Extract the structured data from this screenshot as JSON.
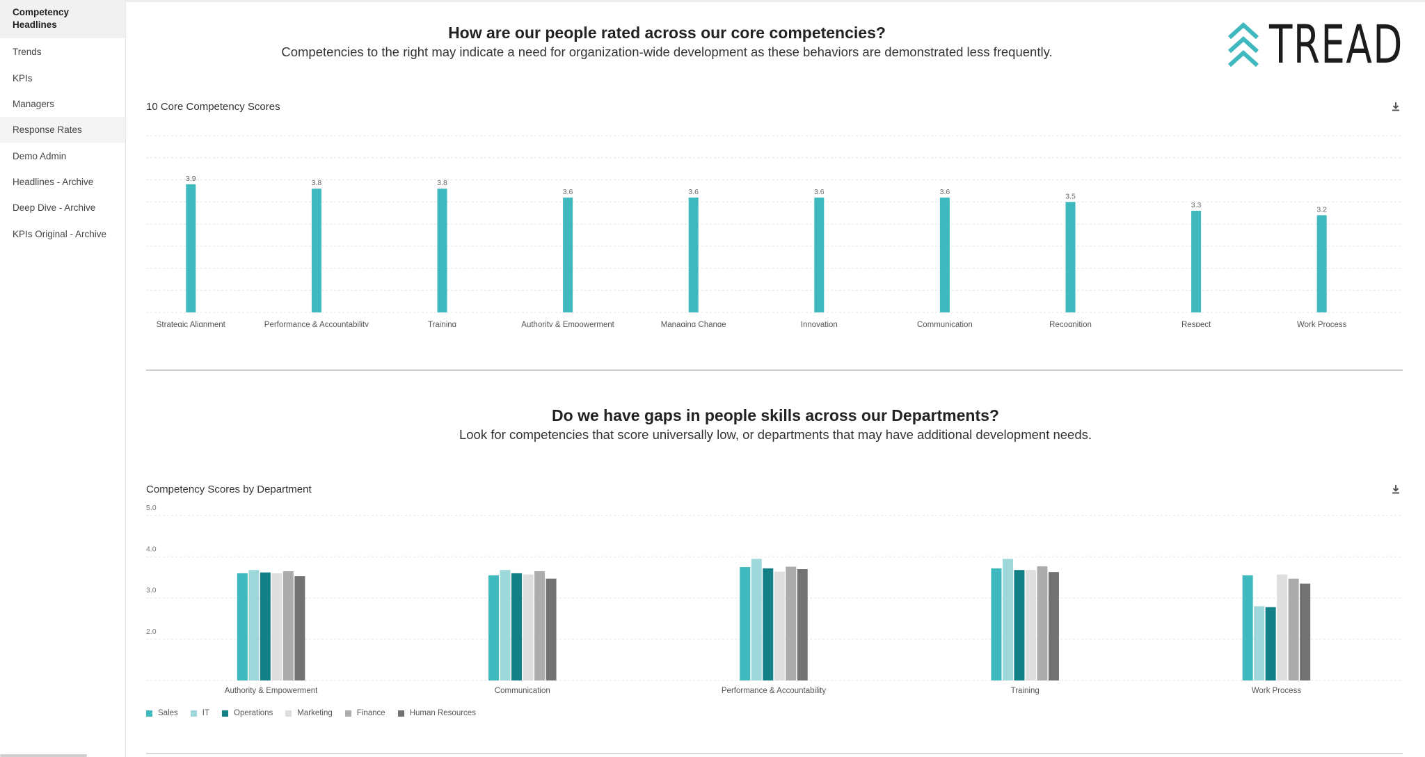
{
  "sidebar": {
    "items": [
      {
        "label": "Competency Headlines",
        "active": true
      },
      {
        "label": "Trends"
      },
      {
        "label": "KPIs"
      },
      {
        "label": "Managers"
      },
      {
        "label": "Response Rates"
      },
      {
        "label": "Demo Admin"
      },
      {
        "label": "Headlines - Archive"
      },
      {
        "label": "Deep Dive - Archive"
      },
      {
        "label": "KPIs Original - Archive"
      }
    ]
  },
  "logo": {
    "text": "TREAD",
    "accent": "#3fb8be"
  },
  "section1": {
    "heading": "How are our people rated across our core competencies?",
    "subheading": "Competencies to the right may indicate a need for organization-wide development as these behaviors are demonstrated less frequently."
  },
  "section2": {
    "heading": "Do we have gaps in people skills across our Departments?",
    "subheading": "Look for competencies that score universally low, or departments that may have additional development needs."
  },
  "icons": {
    "download": "download-icon"
  },
  "chart_data": [
    {
      "type": "bar",
      "title": "10 Core Competency Scores",
      "categories": [
        "Strategic Alignment",
        "Performance & Accountability",
        "Training",
        "Authority & Empowerment",
        "Managing Change",
        "Innovation",
        "Communication",
        "Recognition",
        "Respect",
        "Work Process"
      ],
      "values": [
        3.9,
        3.8,
        3.8,
        3.6,
        3.6,
        3.6,
        3.6,
        3.5,
        3.3,
        3.2
      ],
      "labels": [
        "3.9",
        "3.8",
        "3.8",
        "3.6",
        "3.6",
        "3.6",
        "3.6",
        "3.5",
        "3.3",
        "3.2"
      ],
      "ylim": [
        1.0,
        5.0
      ],
      "grid": true,
      "color": "#3fb8be"
    },
    {
      "type": "bar",
      "title": "Competency Scores by Department",
      "categories": [
        "Authority & Empowerment",
        "Communication",
        "Performance & Accountability",
        "Training",
        "Work Process"
      ],
      "yticks": [
        "5.0",
        "4.0",
        "3.0",
        "2.0"
      ],
      "ylim": [
        1.0,
        5.0
      ],
      "grid": true,
      "legend_position": "bottom-left",
      "series": [
        {
          "name": "Sales",
          "color": "#3fb8be",
          "values": [
            3.6,
            3.55,
            3.75,
            3.72,
            3.55
          ]
        },
        {
          "name": "IT",
          "color": "#9fd8db",
          "values": [
            3.68,
            3.68,
            3.95,
            3.95,
            2.8
          ]
        },
        {
          "name": "Operations",
          "color": "#137f86",
          "values": [
            3.62,
            3.6,
            3.72,
            3.68,
            2.78
          ]
        },
        {
          "name": "Marketing",
          "color": "#dedede",
          "values": [
            3.6,
            3.57,
            3.64,
            3.68,
            3.57
          ]
        },
        {
          "name": "Finance",
          "color": "#acacac",
          "values": [
            3.65,
            3.65,
            3.76,
            3.77,
            3.47
          ]
        },
        {
          "name": "Human Resources",
          "color": "#727272",
          "values": [
            3.53,
            3.47,
            3.7,
            3.63,
            3.35
          ]
        }
      ]
    }
  ]
}
